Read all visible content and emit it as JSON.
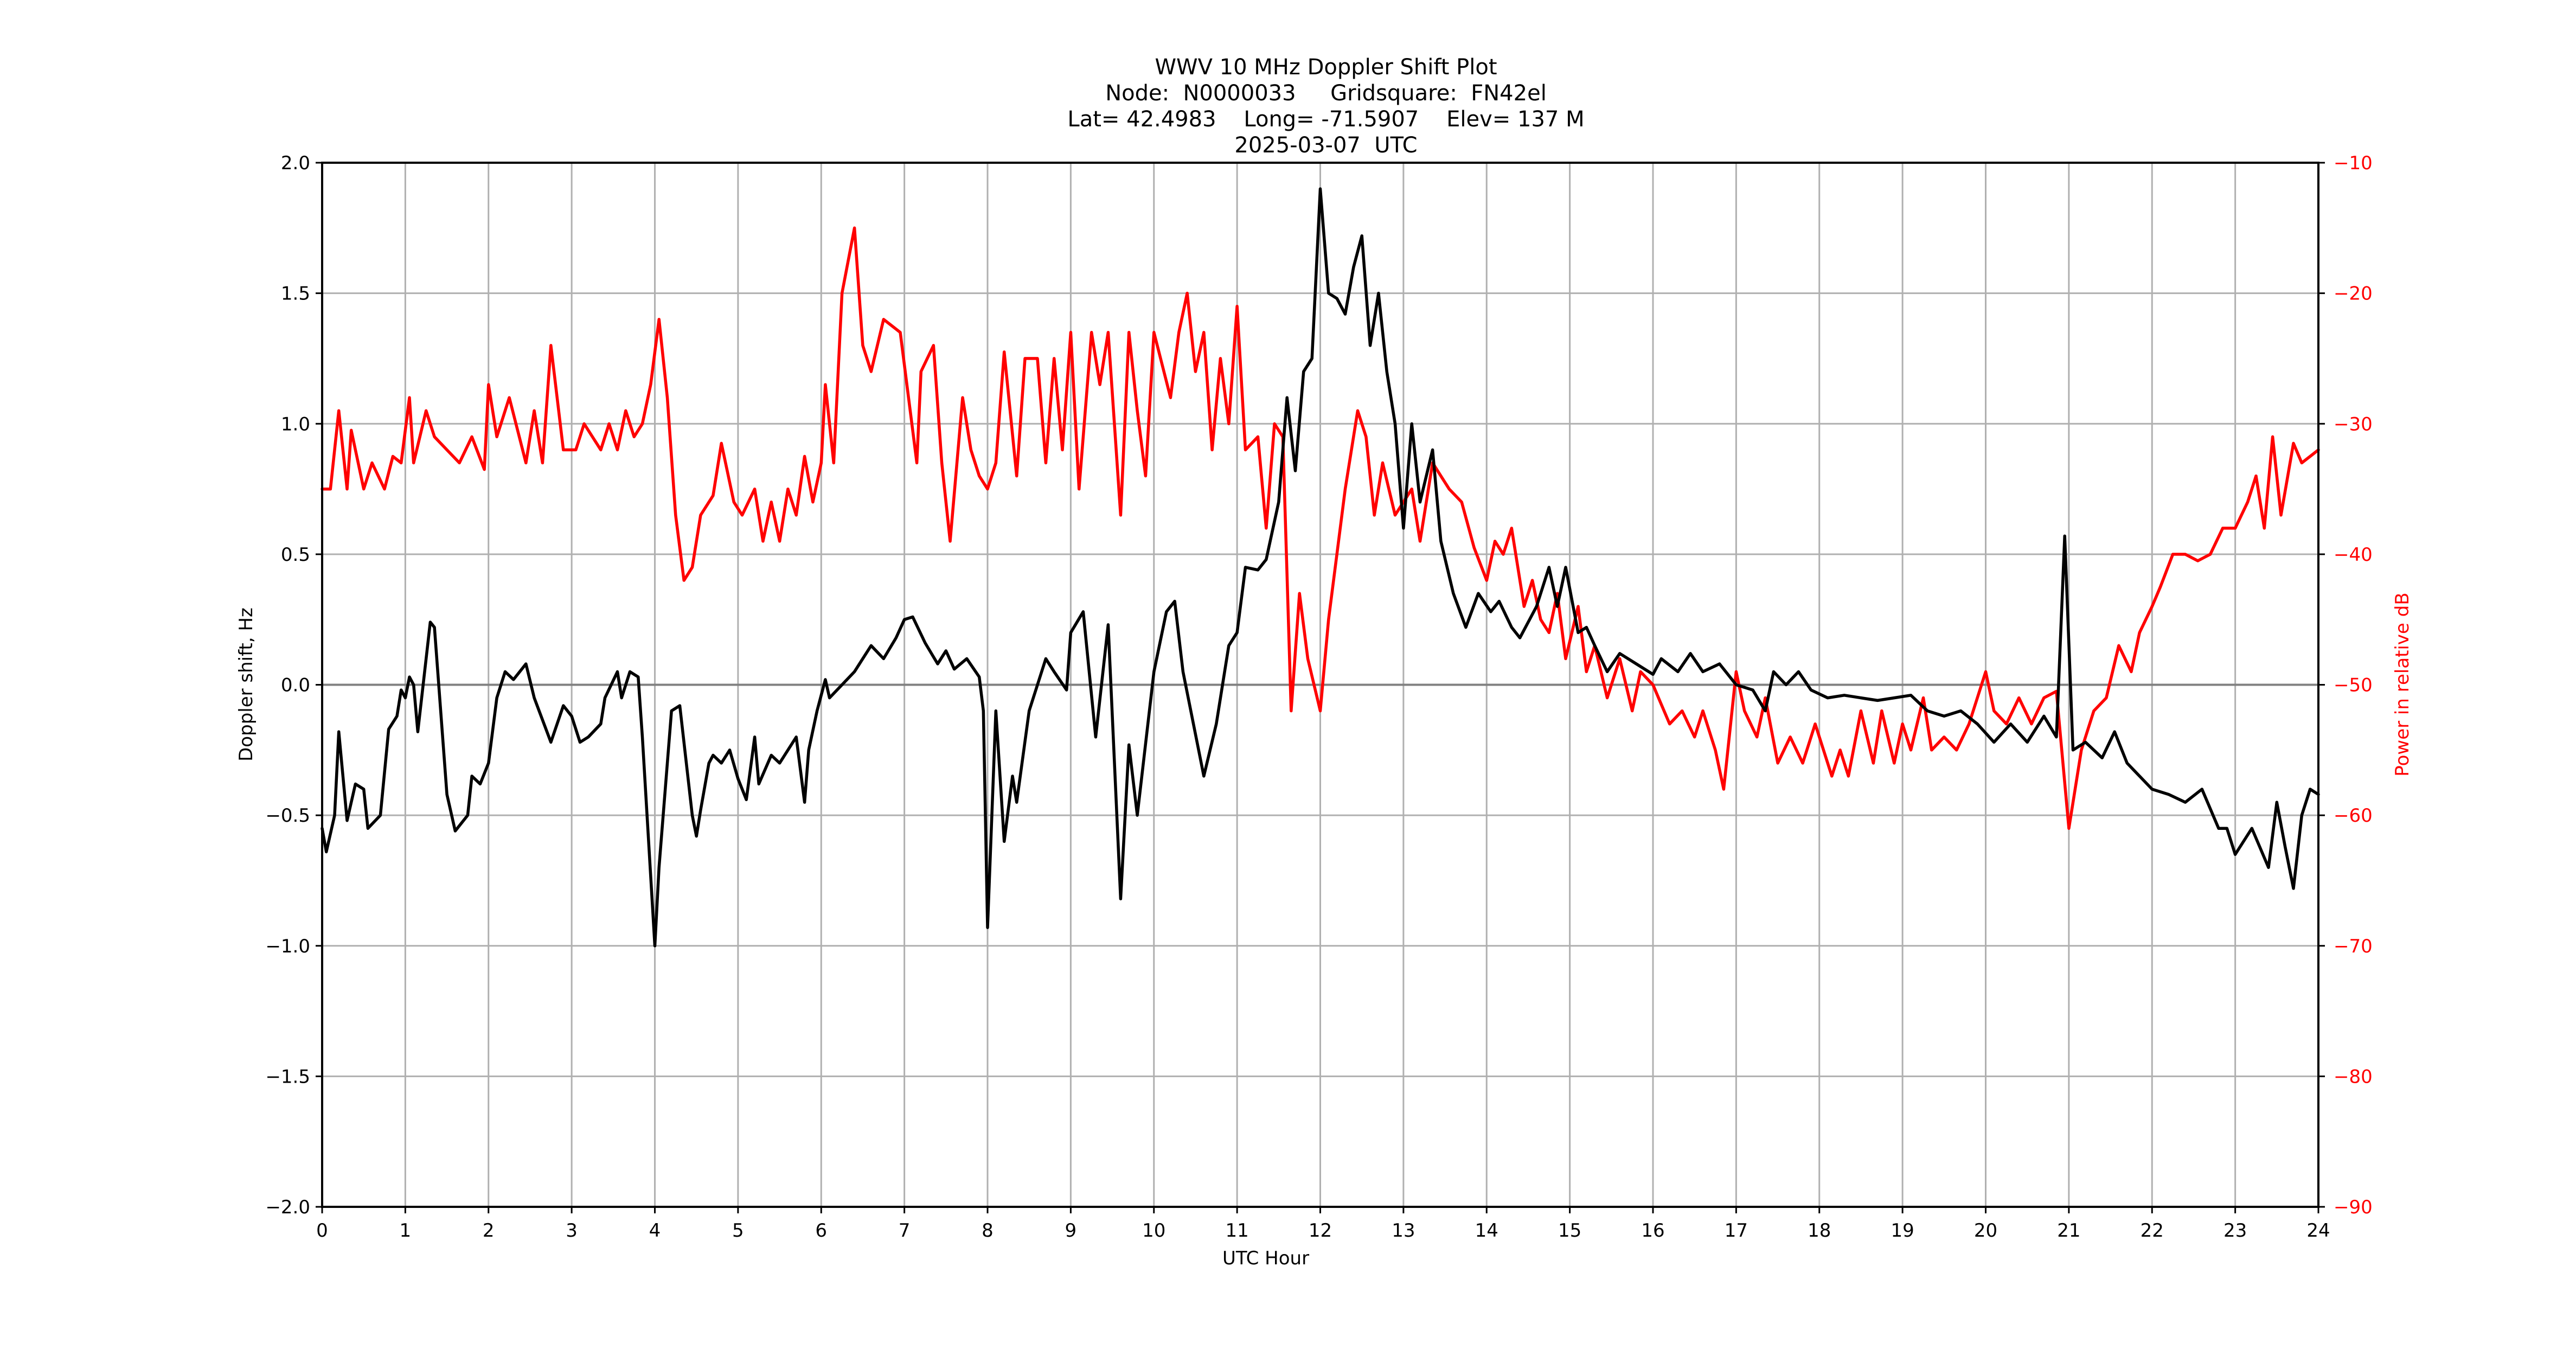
{
  "title": {
    "line1": "WWV 10 MHz Doppler Shift Plot",
    "line2": "Node:  N0000033     Gridsquare:  FN42el",
    "line3": "Lat= 42.4983    Long= -71.5907    Elev= 137 M",
    "line4": "2025-03-07  UTC"
  },
  "axes": {
    "xlabel": "UTC Hour",
    "ylabel_left": "Doppler shift, Hz",
    "ylabel_right": "Power in relative dB",
    "x_ticks": [
      "0",
      "1",
      "2",
      "3",
      "4",
      "5",
      "6",
      "7",
      "8",
      "9",
      "10",
      "11",
      "12",
      "13",
      "14",
      "15",
      "16",
      "17",
      "18",
      "19",
      "20",
      "21",
      "22",
      "23",
      "24"
    ],
    "y_left_ticks": [
      "2.0",
      "1.5",
      "1.0",
      "0.5",
      "0.0",
      "−0.5",
      "−1.0",
      "−1.5",
      "−2.0"
    ],
    "y_right_ticks": [
      "−10",
      "−20",
      "−30",
      "−40",
      "−50",
      "−60",
      "−70",
      "−80",
      "−90"
    ]
  },
  "colors": {
    "doppler": "#000000",
    "power": "#ff0000",
    "grid": "#b0b0b0",
    "zero_line": "#808080"
  },
  "chart_data": {
    "type": "line",
    "title": "WWV 10 MHz Doppler Shift Plot",
    "subtitle": [
      "Node:  N0000033     Gridsquare:  FN42el",
      "Lat= 42.4983    Long= -71.5907    Elev= 137 M",
      "2025-03-07  UTC"
    ],
    "xlabel": "UTC Hour",
    "ylabel": "Doppler shift, Hz",
    "y2label": "Power in relative dB",
    "xlim": [
      0,
      24
    ],
    "ylim": [
      -2.0,
      2.0
    ],
    "y2lim": [
      -90,
      -10
    ],
    "grid": true,
    "legend": null,
    "series": [
      {
        "name": "Doppler shift (Hz)",
        "axis": "left",
        "color": "#000000",
        "x": [
          0,
          0.05,
          0.15,
          0.2,
          0.3,
          0.4,
          0.5,
          0.55,
          0.7,
          0.8,
          0.9,
          0.95,
          1.0,
          1.05,
          1.1,
          1.15,
          1.3,
          1.35,
          1.5,
          1.6,
          1.75,
          1.8,
          1.9,
          2.0,
          2.1,
          2.2,
          2.3,
          2.45,
          2.55,
          2.75,
          2.9,
          3.0,
          3.1,
          3.2,
          3.35,
          3.4,
          3.55,
          3.6,
          3.7,
          3.8,
          3.85,
          4.0,
          4.05,
          4.2,
          4.3,
          4.45,
          4.5,
          4.55,
          4.65,
          4.7,
          4.8,
          4.9,
          5.0,
          5.1,
          5.2,
          5.25,
          5.4,
          5.5,
          5.7,
          5.8,
          5.85,
          5.95,
          6.05,
          6.1,
          6.25,
          6.4,
          6.5,
          6.6,
          6.75,
          6.9,
          7.0,
          7.1,
          7.25,
          7.4,
          7.5,
          7.6,
          7.75,
          7.9,
          7.95,
          8.0,
          8.1,
          8.2,
          8.3,
          8.35,
          8.5,
          8.7,
          8.8,
          8.95,
          9.0,
          9.15,
          9.3,
          9.45,
          9.6,
          9.7,
          9.8,
          10.0,
          10.15,
          10.25,
          10.35,
          10.6,
          10.75,
          10.9,
          11.0,
          11.1,
          11.25,
          11.35,
          11.5,
          11.6,
          11.7,
          11.8,
          11.9,
          12.0,
          12.1,
          12.2,
          12.3,
          12.4,
          12.5,
          12.6,
          12.7,
          12.8,
          12.9,
          13.0,
          13.1,
          13.2,
          13.35,
          13.45,
          13.6,
          13.75,
          13.9,
          14.05,
          14.15,
          14.3,
          14.4,
          14.6,
          14.75,
          14.85,
          14.95,
          15.1,
          15.2,
          15.3,
          15.45,
          15.6,
          15.8,
          16.0,
          16.1,
          16.3,
          16.45,
          16.6,
          16.8,
          17.0,
          17.2,
          17.35,
          17.45,
          17.6,
          17.75,
          17.9,
          18.1,
          18.3,
          18.5,
          18.7,
          18.9,
          19.1,
          19.3,
          19.5,
          19.7,
          19.9,
          20.1,
          20.3,
          20.5,
          20.7,
          20.85,
          20.95,
          21.05,
          21.2,
          21.4,
          21.55,
          21.7,
          21.85,
          22.0,
          22.2,
          22.4,
          22.6,
          22.8,
          22.9,
          23.0,
          23.2,
          23.4,
          23.5,
          23.6,
          23.7,
          23.8,
          23.9,
          24.0
        ],
        "values": [
          -0.55,
          -0.64,
          -0.5,
          -0.18,
          -0.52,
          -0.38,
          -0.4,
          -0.55,
          -0.5,
          -0.17,
          -0.12,
          -0.02,
          -0.05,
          0.03,
          0.0,
          -0.18,
          0.24,
          0.22,
          -0.42,
          -0.56,
          -0.5,
          -0.35,
          -0.38,
          -0.3,
          -0.05,
          0.05,
          0.02,
          0.08,
          -0.05,
          -0.22,
          -0.08,
          -0.12,
          -0.22,
          -0.2,
          -0.15,
          -0.05,
          0.05,
          -0.05,
          0.05,
          0.03,
          -0.2,
          -1.0,
          -0.7,
          -0.1,
          -0.08,
          -0.5,
          -0.58,
          -0.48,
          -0.3,
          -0.27,
          -0.3,
          -0.25,
          -0.36,
          -0.44,
          -0.2,
          -0.38,
          -0.27,
          -0.3,
          -0.2,
          -0.45,
          -0.25,
          -0.1,
          0.02,
          -0.05,
          0.0,
          0.05,
          0.1,
          0.15,
          0.1,
          0.18,
          0.25,
          0.26,
          0.16,
          0.08,
          0.13,
          0.06,
          0.1,
          0.03,
          -0.1,
          -0.93,
          -0.1,
          -0.6,
          -0.35,
          -0.45,
          -0.1,
          0.1,
          0.05,
          -0.02,
          0.2,
          0.28,
          -0.2,
          0.23,
          -0.82,
          -0.23,
          -0.5,
          0.05,
          0.28,
          0.32,
          0.05,
          -0.35,
          -0.15,
          0.15,
          0.2,
          0.45,
          0.44,
          0.48,
          0.7,
          1.1,
          0.82,
          1.2,
          1.25,
          1.9,
          1.5,
          1.48,
          1.42,
          1.6,
          1.72,
          1.3,
          1.5,
          1.2,
          1.0,
          0.6,
          1.0,
          0.7,
          0.9,
          0.55,
          0.35,
          0.22,
          0.35,
          0.28,
          0.32,
          0.22,
          0.18,
          0.3,
          0.45,
          0.3,
          0.45,
          0.2,
          0.22,
          0.15,
          0.05,
          0.12,
          0.08,
          0.04,
          0.1,
          0.05,
          0.12,
          0.05,
          0.08,
          0.0,
          -0.02,
          -0.1,
          0.05,
          0.0,
          0.05,
          -0.02,
          -0.05,
          -0.04,
          -0.05,
          -0.06,
          -0.05,
          -0.04,
          -0.1,
          -0.12,
          -0.1,
          -0.15,
          -0.22,
          -0.15,
          -0.22,
          -0.12,
          -0.2,
          0.57,
          -0.25,
          -0.22,
          -0.28,
          -0.18,
          -0.3,
          -0.35,
          -0.4,
          -0.42,
          -0.45,
          -0.4,
          -0.55,
          -0.55,
          -0.65,
          -0.55,
          -0.7,
          -0.45,
          -0.62,
          -0.78,
          -0.5,
          -0.4,
          -0.42
        ]
      },
      {
        "name": "Power (relative dB)",
        "axis": "right",
        "color": "#ff0000",
        "x": [
          0,
          0.1,
          0.2,
          0.3,
          0.35,
          0.5,
          0.6,
          0.75,
          0.85,
          0.95,
          1.05,
          1.1,
          1.25,
          1.35,
          1.5,
          1.65,
          1.8,
          1.95,
          2.0,
          2.1,
          2.25,
          2.45,
          2.55,
          2.65,
          2.75,
          2.9,
          3.05,
          3.15,
          3.35,
          3.45,
          3.55,
          3.65,
          3.75,
          3.85,
          3.95,
          4.05,
          4.15,
          4.25,
          4.35,
          4.45,
          4.55,
          4.7,
          4.8,
          4.95,
          5.05,
          5.2,
          5.3,
          5.4,
          5.5,
          5.6,
          5.7,
          5.8,
          5.9,
          6.0,
          6.05,
          6.15,
          6.25,
          6.4,
          6.5,
          6.6,
          6.75,
          6.95,
          7.05,
          7.15,
          7.2,
          7.35,
          7.45,
          7.55,
          7.7,
          7.8,
          7.9,
          8.0,
          8.1,
          8.2,
          8.35,
          8.45,
          8.6,
          8.7,
          8.8,
          8.9,
          9.0,
          9.1,
          9.25,
          9.35,
          9.45,
          9.6,
          9.7,
          9.8,
          9.9,
          10.0,
          10.2,
          10.3,
          10.4,
          10.5,
          10.6,
          10.7,
          10.8,
          10.9,
          11.0,
          11.1,
          11.25,
          11.35,
          11.45,
          11.55,
          11.65,
          11.75,
          11.85,
          12.0,
          12.1,
          12.3,
          12.45,
          12.55,
          12.65,
          12.75,
          12.9,
          13.1,
          13.2,
          13.35,
          13.55,
          13.7,
          13.85,
          14.0,
          14.1,
          14.2,
          14.3,
          14.45,
          14.55,
          14.65,
          14.75,
          14.85,
          14.95,
          15.1,
          15.2,
          15.3,
          15.45,
          15.6,
          15.75,
          15.85,
          16.0,
          16.1,
          16.2,
          16.35,
          16.5,
          16.6,
          16.75,
          16.85,
          17.0,
          17.1,
          17.25,
          17.35,
          17.5,
          17.65,
          17.8,
          17.95,
          18.15,
          18.25,
          18.35,
          18.5,
          18.65,
          18.75,
          18.9,
          19.0,
          19.1,
          19.25,
          19.35,
          19.5,
          19.65,
          19.8,
          20.0,
          20.1,
          20.25,
          20.4,
          20.55,
          20.7,
          20.85,
          21.0,
          21.15,
          21.3,
          21.45,
          21.6,
          21.75,
          21.85,
          22.0,
          22.1,
          22.25,
          22.4,
          22.55,
          22.7,
          22.85,
          23.0,
          23.15,
          23.25,
          23.35,
          23.45,
          23.55,
          23.7,
          23.8,
          23.9,
          24.0
        ],
        "values": [
          -35,
          -35,
          -29,
          -35,
          -30.5,
          -35,
          -33,
          -35,
          -32.5,
          -33,
          -28,
          -33,
          -29,
          -31,
          -32,
          -33,
          -31,
          -33.5,
          -27,
          -31,
          -28,
          -33,
          -29,
          -33,
          -24,
          -32,
          -32,
          -30,
          -32,
          -30,
          -32,
          -29,
          -31,
          -30,
          -27,
          -22,
          -28,
          -37,
          -42,
          -41,
          -37,
          -35.5,
          -31.5,
          -36,
          -37,
          -35,
          -39,
          -36,
          -39,
          -35,
          -37,
          -32.5,
          -36,
          -33,
          -27,
          -33,
          -20,
          -15,
          -24,
          -26,
          -22,
          -23,
          -28,
          -33,
          -26,
          -24,
          -33,
          -39,
          -28,
          -32,
          -34,
          -35,
          -33,
          -24.5,
          -34,
          -25,
          -25,
          -33,
          -25,
          -32,
          -23,
          -35,
          -23,
          -27,
          -23,
          -37,
          -23,
          -29,
          -34,
          -23,
          -28,
          -23,
          -20,
          -26,
          -23,
          -32,
          -25,
          -30,
          -21,
          -32,
          -31,
          -38,
          -30,
          -31,
          -52,
          -43,
          -48,
          -52,
          -45,
          -35,
          -29,
          -31,
          -37,
          -33,
          -37,
          -35,
          -39,
          -33,
          -35,
          -36,
          -39.5,
          -42,
          -39,
          -40,
          -38,
          -44,
          -42,
          -45,
          -46,
          -43,
          -48,
          -44,
          -49,
          -47,
          -51,
          -48,
          -52,
          -49,
          -50,
          -51.5,
          -53,
          -52,
          -54,
          -52,
          -55,
          -58,
          -49,
          -52,
          -54,
          -51,
          -56,
          -54,
          -56,
          -53,
          -57,
          -55,
          -57,
          -52,
          -56,
          -52,
          -56,
          -53,
          -55,
          -51,
          -55,
          -54,
          -55,
          -53,
          -49,
          -52,
          -53,
          -51,
          -53,
          -51,
          -50.5,
          -61,
          -55,
          -52,
          -51,
          -47,
          -49,
          -46,
          -44,
          -42.5,
          -40,
          -40,
          -40.5,
          -40,
          -38,
          -38,
          -36,
          -34,
          -38,
          -31,
          -37,
          -31.5,
          -33,
          -32.5,
          -32
        ]
      }
    ]
  }
}
